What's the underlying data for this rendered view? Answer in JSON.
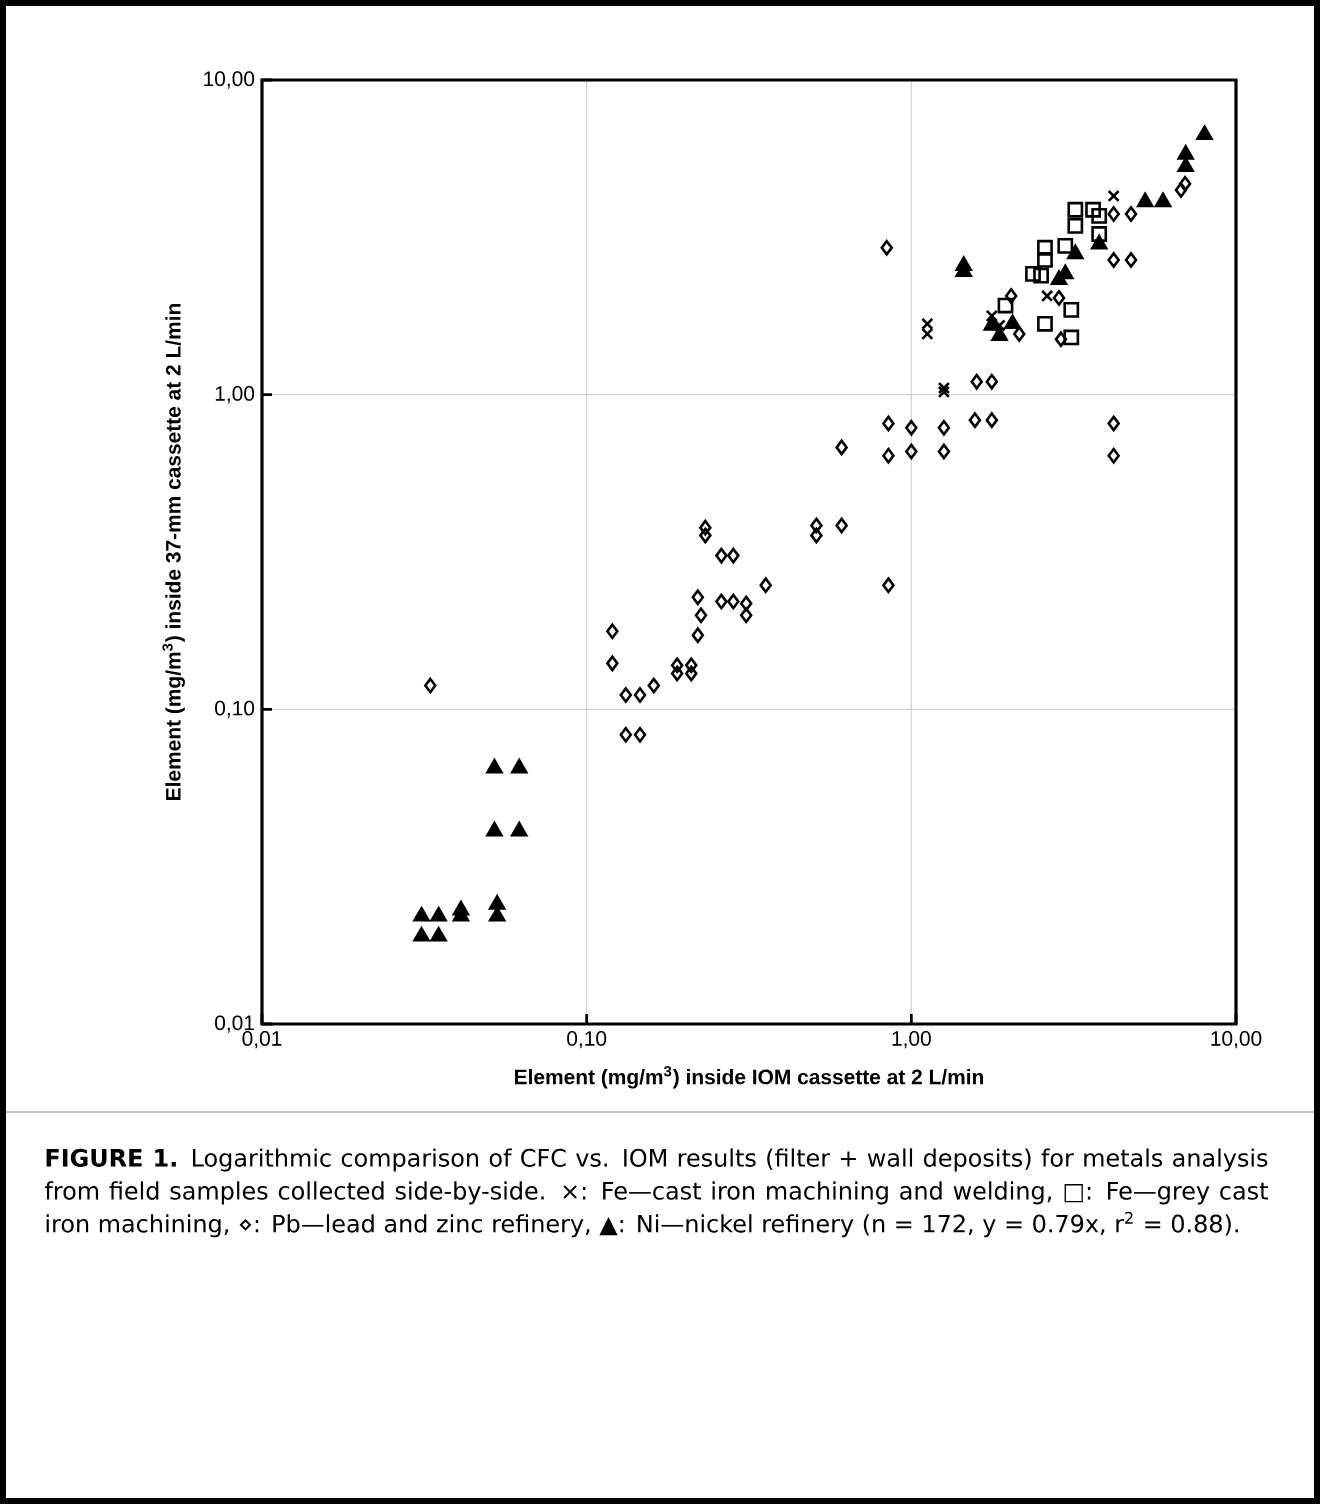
{
  "chart_data": {
    "type": "scatter",
    "xlabel": "**Element (mg/m$^{3}$) inside IOM cassette at 2 L/min**",
    "ylabel": "**Element (mg/m$^{3}$) inside 37-mm cassette at 2 L/min**",
    "log": "xy",
    "grid": true,
    "xlim": [
      0.01,
      10
    ],
    "ylim": [
      0.01,
      10
    ],
    "xticks": [
      {
        "value": 0.01,
        "label": "0,01"
      },
      {
        "value": 0.1,
        "label": "0,10"
      },
      {
        "value": 1,
        "label": "1,00"
      },
      {
        "value": 10,
        "label": "10,00"
      }
    ],
    "yticks": [
      {
        "value": 0.01,
        "label": "0,01"
      },
      {
        "value": 0.1,
        "label": "0,10"
      },
      {
        "value": 1,
        "label": "1,00"
      },
      {
        "value": 10,
        "label": "10,00"
      }
    ],
    "series": [
      {
        "marker": "cross",
        "color": "#000000",
        "x": [
          1.12,
          1.12,
          1.26,
          1.26,
          1.77,
          1.87,
          2.62,
          4.2
        ],
        "values": [
          1.68,
          1.56,
          1.05,
          1.02,
          1.78,
          1.66,
          2.06,
          4.28
        ]
      },
      {
        "marker": "square",
        "color": "#000000",
        "x": [
          3.2,
          3.63,
          3.2,
          3.79,
          3.79,
          2.58,
          2.58,
          2.37,
          2.51,
          3.11,
          3.11,
          2.58,
          2.98,
          1.95
        ],
        "values": [
          3.87,
          3.87,
          3.44,
          3.7,
          3.24,
          2.93,
          2.68,
          2.42,
          2.39,
          1.86,
          1.52,
          1.68,
          2.97,
          1.92
        ]
      },
      {
        "marker": "diamond",
        "color": "#000000",
        "x": [
          0.033,
          0.12,
          0.12,
          0.132,
          0.146,
          0.161,
          0.132,
          0.146,
          0.19,
          0.19,
          0.21,
          0.21,
          0.22,
          0.225,
          0.22,
          0.26,
          0.283,
          0.31,
          0.31,
          0.356,
          0.26,
          0.283,
          0.232,
          0.232,
          0.51,
          0.51,
          0.61,
          0.85,
          0.61,
          0.85,
          0.85,
          1.0,
          1.0,
          1.26,
          1.26,
          1.57,
          1.77,
          4.2,
          4.2,
          0.84,
          1.59,
          1.77,
          2.03,
          2.85,
          2.15,
          2.89,
          4.2,
          4.75,
          4.2,
          4.75,
          6.77,
          6.97
        ],
        "values": [
          0.119,
          0.177,
          0.14,
          0.111,
          0.111,
          0.119,
          0.083,
          0.083,
          0.138,
          0.13,
          0.138,
          0.13,
          0.172,
          0.199,
          0.227,
          0.22,
          0.22,
          0.217,
          0.199,
          0.248,
          0.308,
          0.308,
          0.378,
          0.357,
          0.384,
          0.357,
          0.384,
          0.248,
          0.68,
          0.81,
          0.64,
          0.785,
          0.66,
          0.785,
          0.66,
          0.83,
          0.83,
          0.81,
          0.64,
          2.93,
          1.1,
          1.1,
          2.06,
          2.03,
          1.56,
          1.5,
          2.68,
          2.68,
          3.75,
          3.75,
          4.47,
          4.68
        ]
      },
      {
        "marker": "triangle",
        "color": "#000000",
        "x": [
          8.0,
          7.0,
          7.0,
          5.25,
          5.96,
          1.45,
          1.45,
          2.98,
          3.2,
          3.79,
          1.77,
          1.87,
          2.05,
          2.85,
          0.052,
          0.062,
          0.052,
          0.062,
          0.031,
          0.031,
          0.035,
          0.035,
          0.041,
          0.041,
          0.053,
          0.053
        ],
        "values": [
          6.7,
          5.8,
          5.3,
          4.1,
          4.1,
          2.57,
          2.46,
          2.42,
          2.8,
          3.01,
          1.66,
          1.54,
          1.68,
          2.32,
          0.065,
          0.065,
          0.041,
          0.041,
          0.022,
          0.019,
          0.022,
          0.019,
          0.023,
          0.022,
          0.024,
          0.022
        ]
      }
    ],
    "annotations": [
      "**FIGURE 1.** Logarithmic comparison of CFC vs. IOM results (filter + wall deposits) for metals analysis from field samples collected side-by-side. ×: Fe—cast iron machining and welding, □: Fe—grey cast iron machining, ⋄: Pb—lead and zinc refinery, ▲: Ni—nickel refinery (n = 172, y = 0.79x, r$^{2}$ = 0.88)."
    ]
  }
}
